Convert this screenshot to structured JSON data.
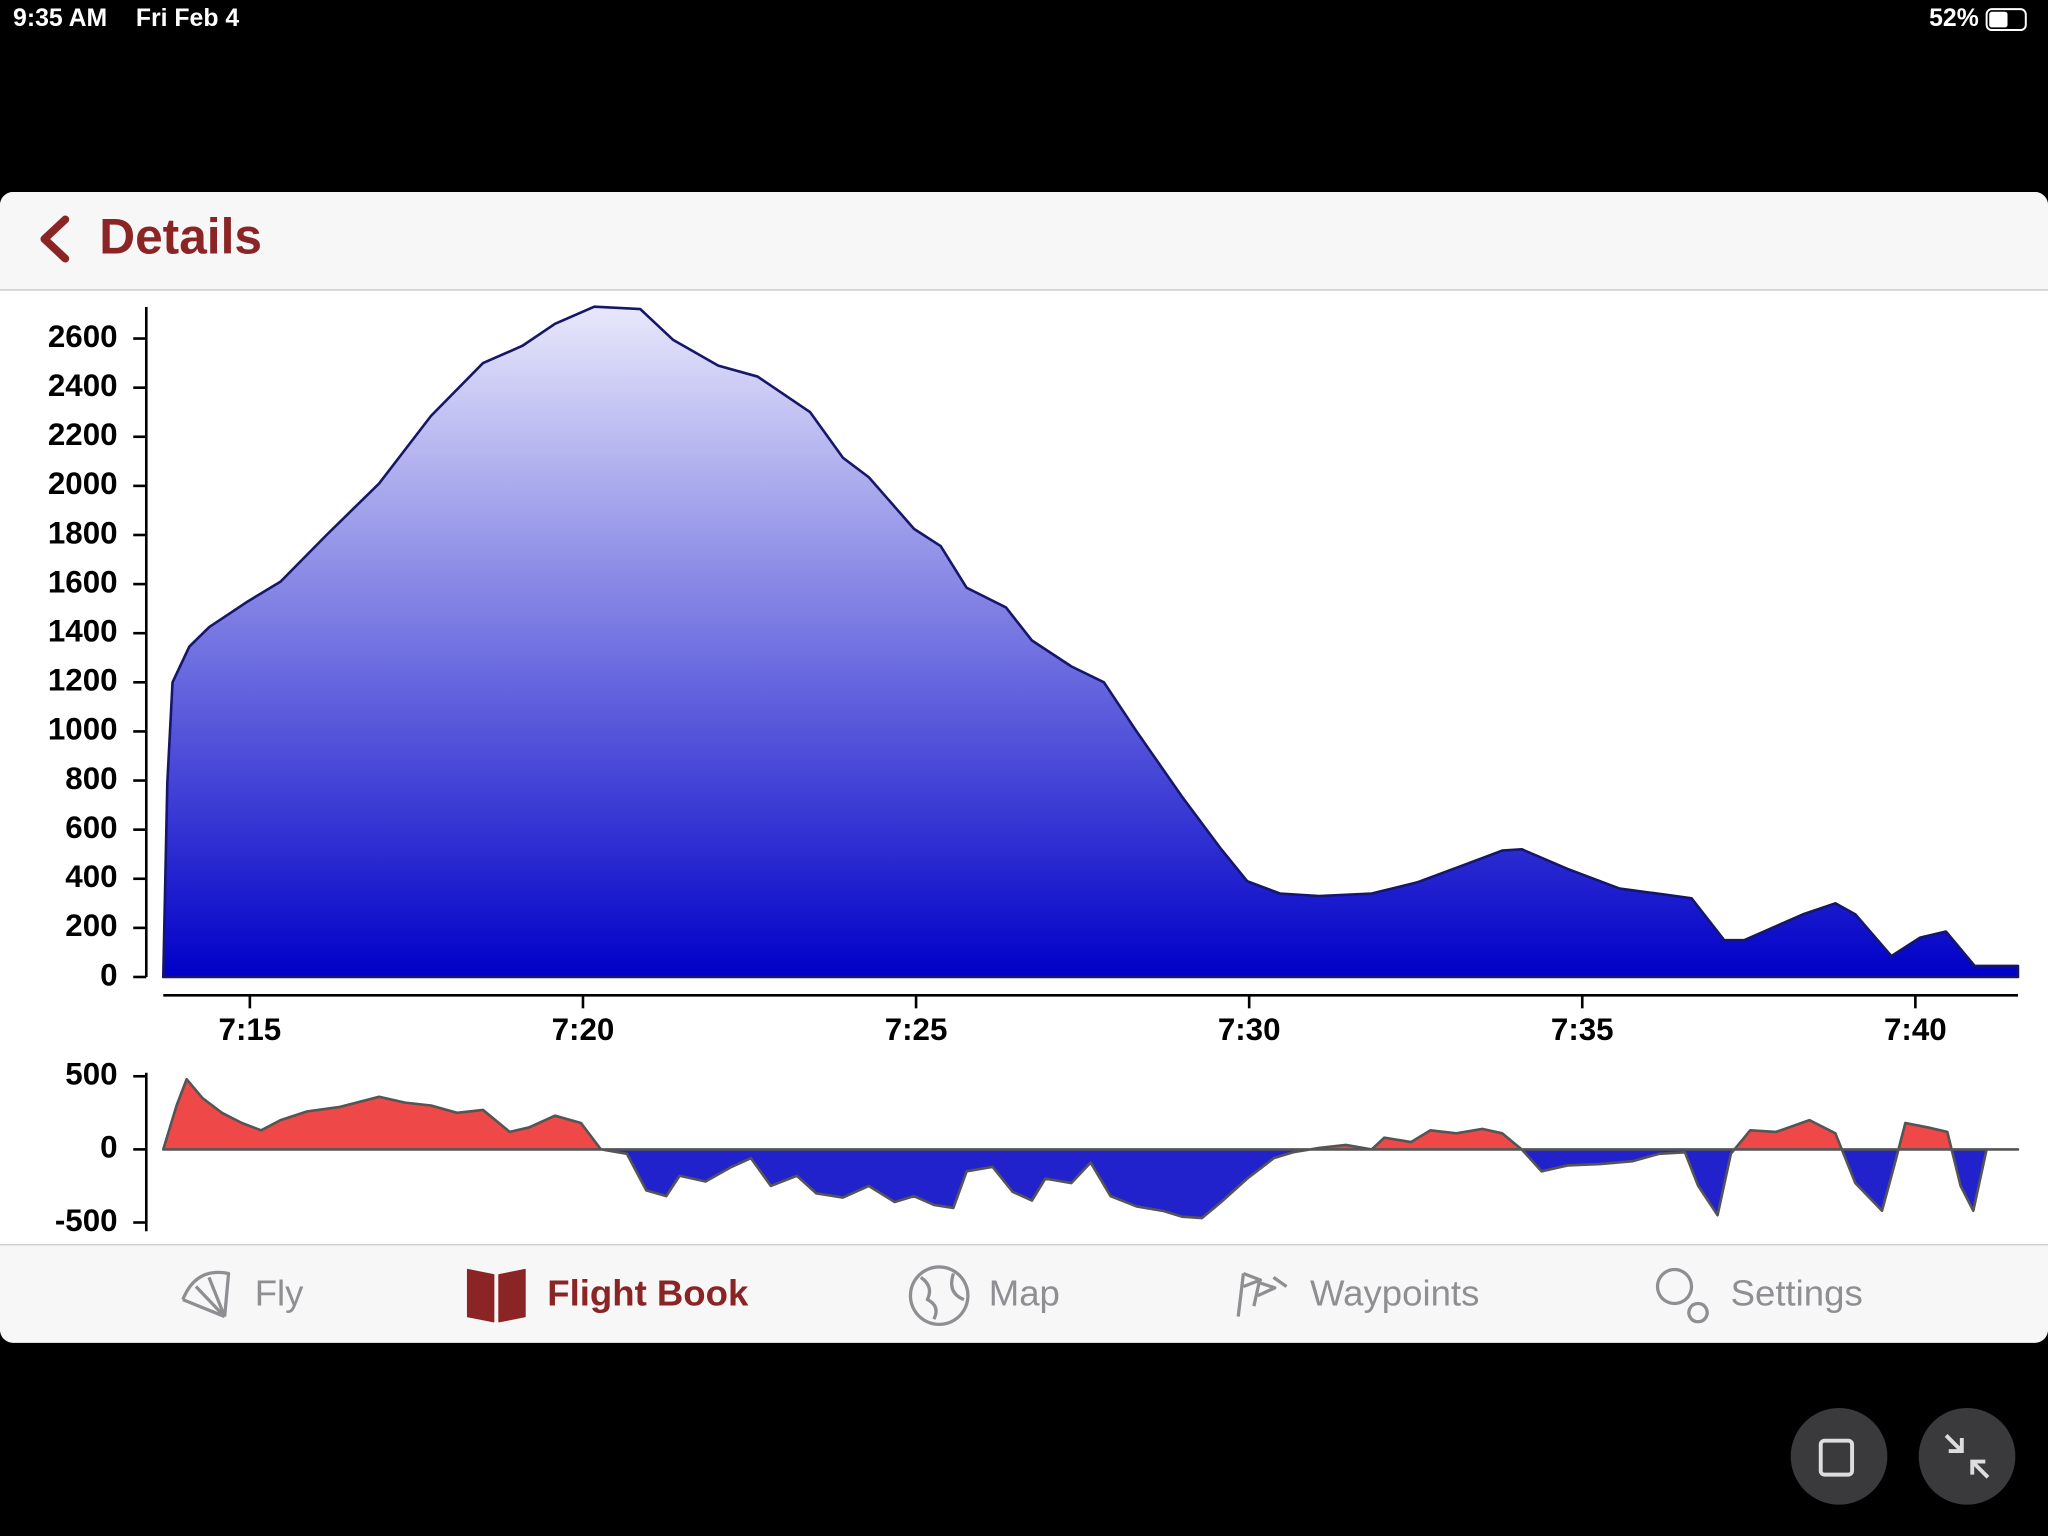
{
  "status_bar": {
    "time": "9:35 AM",
    "date": "Fri Feb 4",
    "battery": "52%"
  },
  "nav": {
    "back_title": "Details"
  },
  "chart_data": [
    {
      "type": "area",
      "x": [
        433.7,
        433.76,
        433.84,
        434.09,
        434.39,
        434.97,
        435.46,
        436.15,
        436.94,
        437.72,
        438.5,
        439.09,
        439.58,
        440.17,
        440.86,
        441.35,
        442.03,
        442.62,
        443.41,
        443.9,
        444.29,
        444.97,
        445.37,
        445.76,
        446.35,
        446.74,
        447.33,
        447.82,
        448.31,
        448.99,
        449.58,
        449.97,
        450.46,
        451.05,
        451.84,
        452.52,
        453.21,
        453.8,
        454.09,
        454.78,
        455.56,
        456.25,
        456.64,
        457.13,
        457.43,
        458.31,
        458.8,
        459.1,
        459.64,
        460.07,
        460.46,
        460.89,
        461.54
      ],
      "values": [
        0,
        790,
        1200,
        1345,
        1425,
        1530,
        1610,
        1800,
        2010,
        2285,
        2500,
        2570,
        2660,
        2730,
        2720,
        2595,
        2490,
        2445,
        2300,
        2115,
        2035,
        1825,
        1755,
        1585,
        1505,
        1370,
        1265,
        1200,
        1000,
        735,
        520,
        390,
        340,
        330,
        340,
        385,
        455,
        515,
        520,
        440,
        360,
        335,
        320,
        150,
        150,
        255,
        300,
        255,
        85,
        160,
        185,
        45,
        45
      ],
      "xlim": [
        433.7,
        461.54
      ],
      "ylim": [
        0,
        2750
      ],
      "xticks": [
        {
          "value": 435,
          "label": "7:15"
        },
        {
          "value": 440,
          "label": "7:20"
        },
        {
          "value": 445,
          "label": "7:25"
        },
        {
          "value": 450,
          "label": "7:30"
        },
        {
          "value": 455,
          "label": "7:35"
        },
        {
          "value": 460,
          "label": "7:40"
        }
      ],
      "yticks": [
        0,
        200,
        400,
        600,
        800,
        1000,
        1200,
        1400,
        1600,
        1800,
        2000,
        2200,
        2400,
        2600
      ],
      "color": "#0000c8",
      "top_color": "#e8e8fb",
      "line_color": "#16166a"
    },
    {
      "type": "area",
      "x": [
        433.7,
        433.9,
        434.05,
        434.29,
        434.58,
        434.88,
        435.17,
        435.46,
        435.86,
        436.35,
        436.94,
        437.33,
        437.72,
        438.11,
        438.5,
        438.9,
        439.19,
        439.58,
        439.97,
        440.27,
        440.66,
        440.95,
        441.25,
        441.45,
        441.84,
        442.23,
        442.52,
        442.82,
        443.21,
        443.5,
        443.9,
        444.29,
        444.68,
        444.97,
        445.27,
        445.56,
        445.76,
        446.15,
        446.45,
        446.74,
        446.94,
        447.33,
        447.62,
        447.92,
        448.31,
        448.7,
        448.99,
        449.29,
        449.58,
        449.97,
        450.37,
        450.66,
        451.05,
        451.45,
        451.84,
        452.03,
        452.43,
        452.72,
        453.11,
        453.5,
        453.8,
        454.09,
        454.39,
        454.78,
        455.27,
        455.76,
        456.15,
        456.54,
        456.74,
        457.03,
        457.23,
        457.52,
        457.91,
        458.41,
        458.8,
        459.1,
        459.5,
        459.69,
        459.85,
        460.19,
        460.48,
        460.68,
        460.87,
        461.07,
        461.54
      ],
      "values": [
        0,
        300,
        480,
        350,
        250,
        180,
        130,
        200,
        260,
        290,
        360,
        320,
        300,
        250,
        270,
        120,
        150,
        230,
        180,
        0,
        -30,
        -280,
        -320,
        -180,
        -220,
        -120,
        -60,
        -250,
        -180,
        -300,
        -330,
        -250,
        -360,
        -320,
        -380,
        -400,
        -150,
        -120,
        -290,
        -350,
        -200,
        -230,
        -90,
        -320,
        -390,
        -420,
        -460,
        -470,
        -360,
        -200,
        -60,
        -20,
        10,
        30,
        0,
        80,
        50,
        130,
        110,
        140,
        110,
        0,
        -150,
        -110,
        -100,
        -80,
        -30,
        -20,
        -250,
        -450,
        -30,
        130,
        120,
        200,
        110,
        -230,
        -420,
        -100,
        180,
        150,
        120,
        -250,
        -420,
        0,
        0
      ],
      "xlim": [
        433.7,
        461.54
      ],
      "ylim": [
        -560,
        560
      ],
      "yticks": [
        -500,
        0,
        500
      ],
      "color": "#2222cc",
      "positive_color": "#ee4848",
      "line_color": "#555555"
    }
  ],
  "tab_bar": {
    "tabs": [
      "Fly",
      "Flight Book",
      "Map",
      "Waypoints",
      "Settings"
    ],
    "selected": 1
  }
}
